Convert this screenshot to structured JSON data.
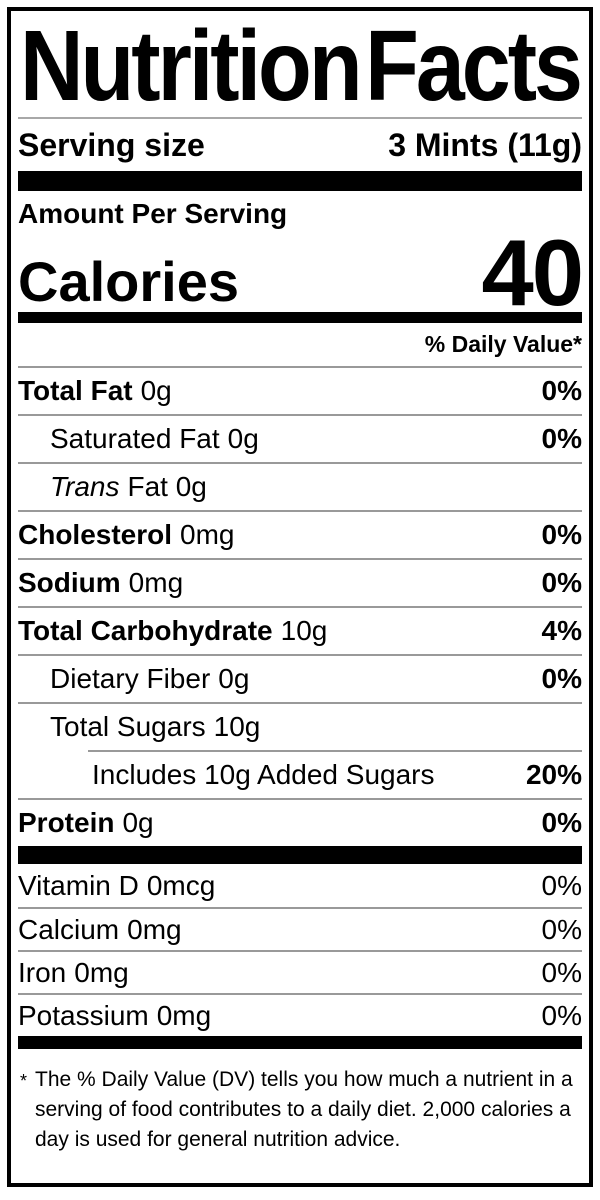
{
  "nutrition": {
    "title": {
      "left": "Nutrition",
      "right": "Facts"
    },
    "serving": {
      "label": "Serving size",
      "value": "3 Mints (11g)"
    },
    "calories": {
      "header": "Amount Per Serving",
      "label": "Calories",
      "value": "40"
    },
    "daily_value_header": "% Daily Value*",
    "rows": [
      {
        "name": "Total Fat",
        "value": "0g",
        "dv": "0%"
      },
      {
        "name": "Saturated Fat",
        "value": "0g",
        "dv": "0%"
      },
      {
        "name_italic": "Trans",
        "value": "Fat 0g",
        "dv": ""
      },
      {
        "name": "Cholesterol",
        "value": "0mg",
        "dv": "0%"
      },
      {
        "name": "Sodium",
        "value": "0mg",
        "dv": "0%"
      },
      {
        "name": "Total Carbohydrate",
        "value": "10g",
        "dv": "4%"
      },
      {
        "name": "Dietary Fiber",
        "value": "0g",
        "dv": "0%"
      },
      {
        "name": "Total Sugars",
        "value": "10g",
        "dv": ""
      },
      {
        "name": "Includes 10g Added Sugars",
        "value": "",
        "dv": "20%"
      },
      {
        "name": "Protein",
        "value": "0g",
        "dv": "0%"
      }
    ],
    "micronutrients": [
      {
        "name": "Vitamin D",
        "value": "0mcg",
        "dv": "0%"
      },
      {
        "name": "Calcium",
        "value": "0mg",
        "dv": "0%"
      },
      {
        "name": "Iron",
        "value": "0mg",
        "dv": "0%"
      },
      {
        "name": "Potassium",
        "value": "0mg",
        "dv": "0%"
      }
    ],
    "footnote_marker": "*",
    "footnote": "The % Daily Value (DV) tells you how much a nutrient in a serving of food contributes to a daily diet. 2,000 calories a day is used for general nutrition advice.",
    "colors": {
      "ink": "#000000",
      "hairline": "#999999",
      "background": "#ffffff"
    }
  }
}
